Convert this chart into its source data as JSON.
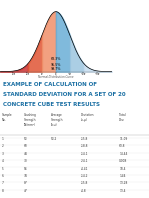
{
  "title_line1": "EXAMPLE OF CALCULATION OF",
  "title_line2": "STANDARD DEVIATION FOR A SET OF 20",
  "title_line3": "CONCRETE CUBE TEST RESULTS",
  "title_color": "#1a6fa3",
  "bg_color": "#f0ece0",
  "table_rows": [
    [
      "1",
      "53",
      "53.2",
      "-15.8",
      "11.09"
    ],
    [
      "2",
      "60",
      "",
      "-18.8",
      "63.8"
    ],
    [
      "3",
      "44",
      "",
      "-14.1",
      "14.44"
    ],
    [
      "4",
      "30",
      "",
      "-24.1",
      "0.008"
    ],
    [
      "5",
      "54",
      "",
      "-4.41",
      "18.4"
    ],
    [
      "6",
      "34",
      "",
      "-14.2",
      "1.44"
    ],
    [
      "7",
      "87",
      "",
      "-15.8",
      "13.28"
    ],
    [
      "8",
      "47",
      "",
      "-4.8",
      "13.4"
    ]
  ],
  "page_bg": "#ffffff",
  "fill_colors": [
    "#cc3333",
    "#e05535",
    "#f0906a",
    "#6aaed6",
    "#9dc6e0",
    "#c5dcef"
  ]
}
